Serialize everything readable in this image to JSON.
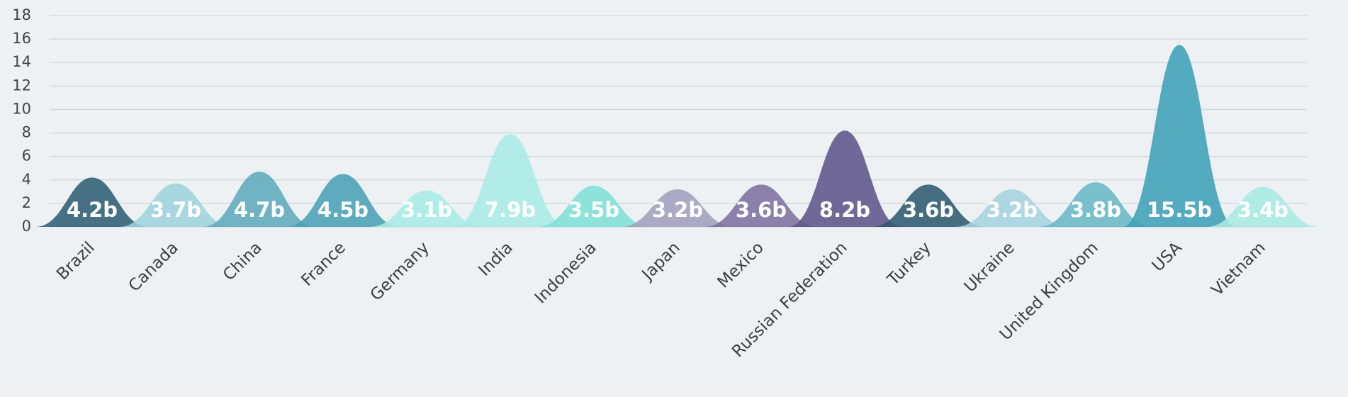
{
  "chart_data": {
    "type": "bell",
    "categories": [
      "Brazil",
      "Canada",
      "China",
      "France",
      "Germany",
      "India",
      "Indonesia",
      "Japan",
      "Mexico",
      "Russian Federation",
      "Turkey",
      "Ukraine",
      "United Kingdom",
      "USA",
      "Vietnam"
    ],
    "values": [
      4.2,
      3.7,
      4.7,
      4.5,
      3.1,
      7.9,
      3.5,
      3.2,
      3.6,
      8.2,
      3.6,
      3.2,
      3.8,
      15.5,
      3.4
    ],
    "value_labels": [
      "4.2b",
      "3.7b",
      "4.7b",
      "4.5b",
      "3.1b",
      "7.9b",
      "3.5b",
      "3.2b",
      "3.6b",
      "8.2b",
      "3.6b",
      "3.2b",
      "3.8b",
      "15.5b",
      "3.4b"
    ],
    "colors": [
      "#2f5d73",
      "#9fd3dc",
      "#5eaabb",
      "#4aa0b5",
      "#a8ece6",
      "#a8ebe6",
      "#7fe0d6",
      "#a09fbe",
      "#7d719f",
      "#5e5489",
      "#2e5a6e",
      "#a5d3df",
      "#6ab8c6",
      "#3f9fb6",
      "#a8e9e2"
    ],
    "ylim": [
      0,
      18
    ],
    "yticks": [
      0,
      2,
      4,
      6,
      8,
      10,
      12,
      14,
      16,
      18
    ],
    "grid": true
  }
}
